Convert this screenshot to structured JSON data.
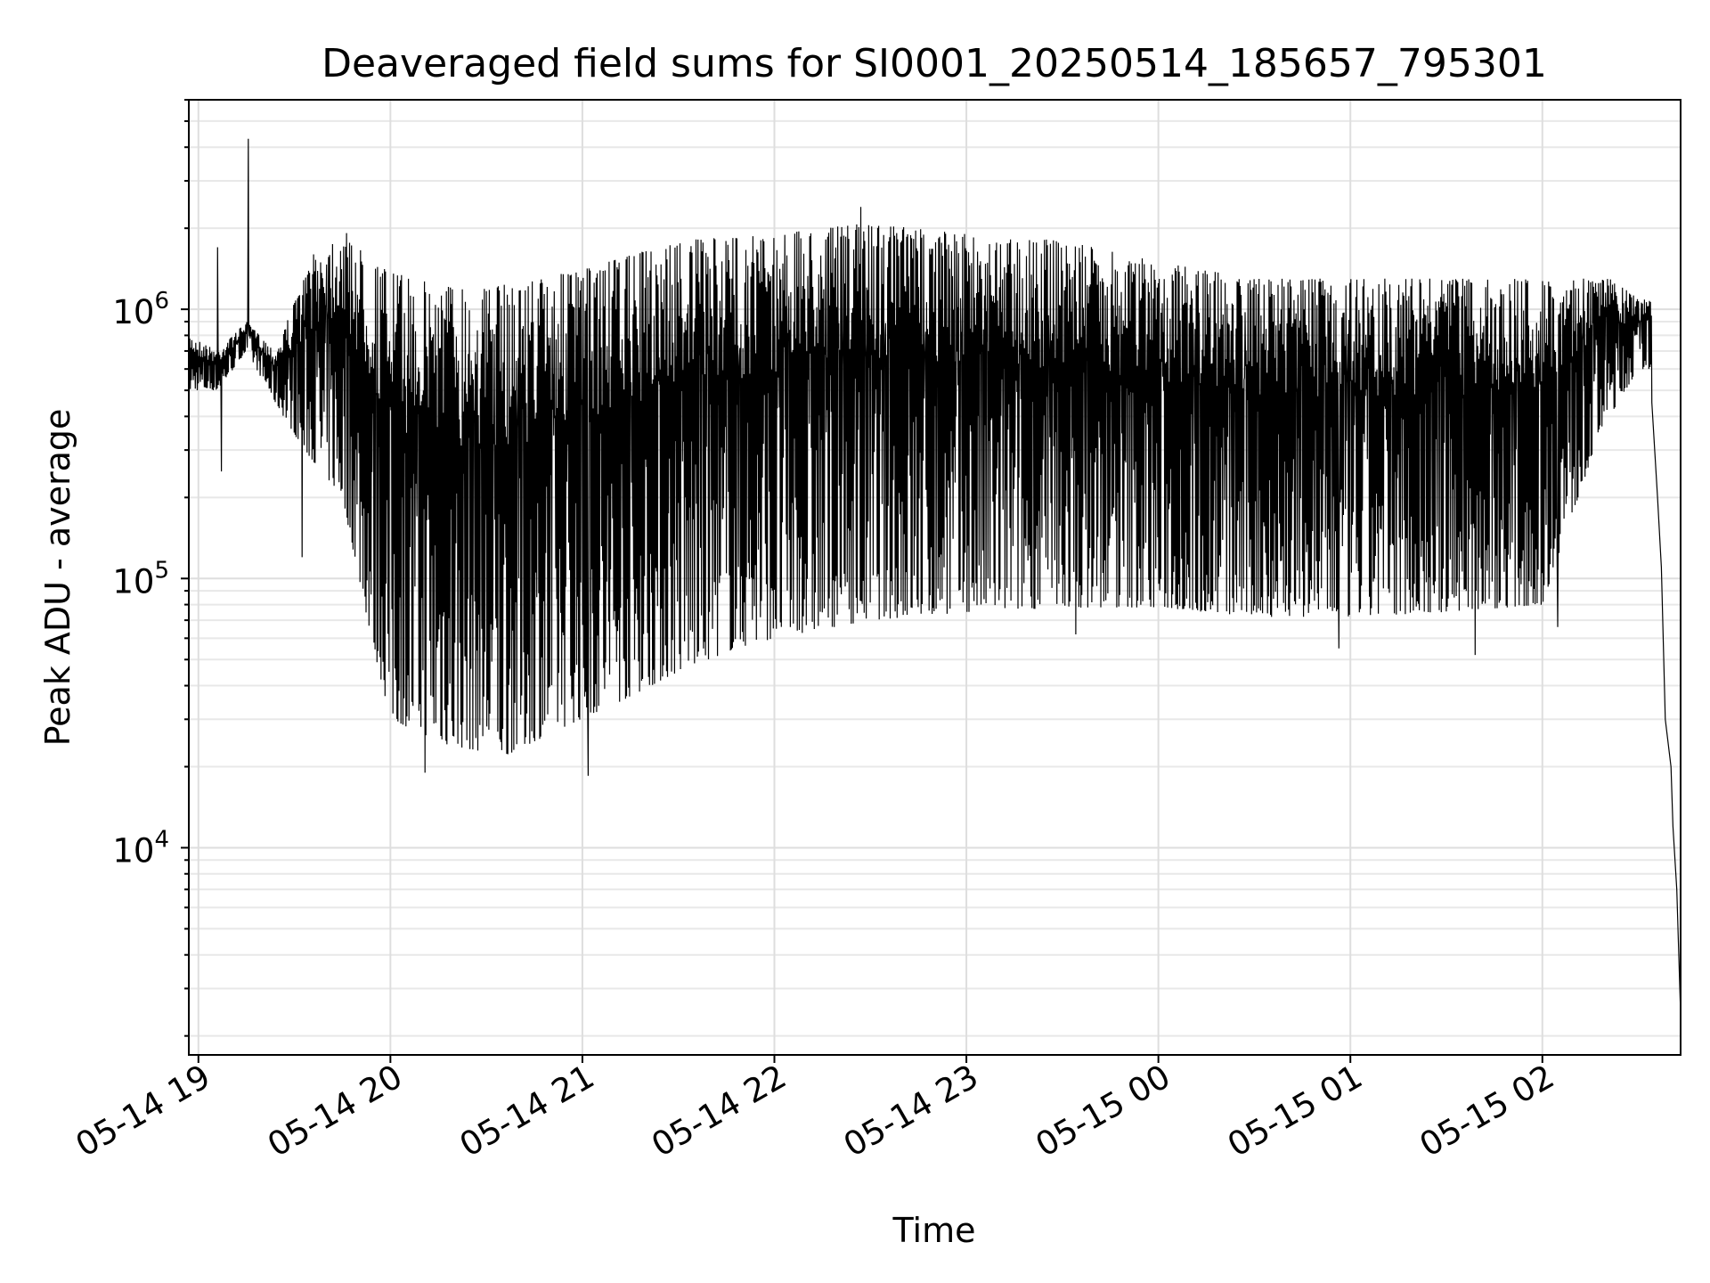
{
  "chart_data": {
    "type": "line",
    "title": "Deaveraged field sums for SI0001_20250514_185657_795301",
    "xlabel": "Time",
    "ylabel": "Peak ADU - average",
    "yscale": "log",
    "ylim": [
      1700,
      6000000
    ],
    "xlim_hours": [
      18.95,
      26.72
    ],
    "grid": true,
    "line_color": "#000000",
    "x_ticks": [
      {
        "label": "05-14 19",
        "hour": 19
      },
      {
        "label": "05-14 20",
        "hour": 20
      },
      {
        "label": "05-14 21",
        "hour": 21
      },
      {
        "label": "05-14 22",
        "hour": 22
      },
      {
        "label": "05-14 23",
        "hour": 23
      },
      {
        "label": "05-15 00",
        "hour": 24
      },
      {
        "label": "05-15 01",
        "hour": 25
      },
      {
        "label": "05-15 02",
        "hour": 26
      }
    ],
    "y_ticks": [
      {
        "base": "10",
        "exp": "4",
        "value": 10000
      },
      {
        "base": "10",
        "exp": "5",
        "value": 100000
      },
      {
        "base": "10",
        "exp": "6",
        "value": 1000000
      }
    ],
    "series": [
      {
        "name": "Peak ADU - average",
        "description": "dense oscillating signal; envelope values sampled along time",
        "upper_envelope": [
          {
            "hour": 18.95,
            "value": 800000
          },
          {
            "hour": 19.1,
            "value": 700000
          },
          {
            "hour": 19.25,
            "value": 900000
          },
          {
            "hour": 19.4,
            "value": 700000
          },
          {
            "hour": 19.6,
            "value": 1600000
          },
          {
            "hour": 19.75,
            "value": 2000000
          },
          {
            "hour": 19.9,
            "value": 1500000
          },
          {
            "hour": 20.1,
            "value": 1300000
          },
          {
            "hour": 20.5,
            "value": 1200000
          },
          {
            "hour": 21.0,
            "value": 1400000
          },
          {
            "hour": 21.5,
            "value": 1800000
          },
          {
            "hour": 22.0,
            "value": 1900000
          },
          {
            "hour": 22.5,
            "value": 2100000
          },
          {
            "hour": 23.0,
            "value": 1900000
          },
          {
            "hour": 23.5,
            "value": 1800000
          },
          {
            "hour": 24.0,
            "value": 1500000
          },
          {
            "hour": 24.5,
            "value": 1300000
          },
          {
            "hour": 25.0,
            "value": 1300000
          },
          {
            "hour": 25.5,
            "value": 1300000
          },
          {
            "hour": 26.0,
            "value": 1300000
          },
          {
            "hour": 26.35,
            "value": 1300000
          },
          {
            "hour": 26.5,
            "value": 1100000
          }
        ],
        "lower_envelope": [
          {
            "hour": 18.95,
            "value": 500000
          },
          {
            "hour": 19.1,
            "value": 500000
          },
          {
            "hour": 19.25,
            "value": 700000
          },
          {
            "hour": 19.4,
            "value": 450000
          },
          {
            "hour": 19.55,
            "value": 300000
          },
          {
            "hour": 19.75,
            "value": 200000
          },
          {
            "hour": 19.9,
            "value": 60000
          },
          {
            "hour": 20.0,
            "value": 30000
          },
          {
            "hour": 20.3,
            "value": 24000
          },
          {
            "hour": 20.6,
            "value": 22000
          },
          {
            "hour": 20.9,
            "value": 28000
          },
          {
            "hour": 21.2,
            "value": 35000
          },
          {
            "hour": 21.5,
            "value": 45000
          },
          {
            "hour": 21.8,
            "value": 55000
          },
          {
            "hour": 22.0,
            "value": 60000
          },
          {
            "hour": 22.5,
            "value": 70000
          },
          {
            "hour": 23.0,
            "value": 75000
          },
          {
            "hour": 23.5,
            "value": 78000
          },
          {
            "hour": 24.0,
            "value": 78000
          },
          {
            "hour": 24.5,
            "value": 72000
          },
          {
            "hour": 25.0,
            "value": 72000
          },
          {
            "hour": 25.5,
            "value": 75000
          },
          {
            "hour": 26.0,
            "value": 80000
          },
          {
            "hour": 26.3,
            "value": 350000
          },
          {
            "hour": 26.5,
            "value": 600000
          }
        ],
        "spikes": [
          {
            "hour": 19.1,
            "value": 1700000
          },
          {
            "hour": 19.12,
            "value": 250000
          },
          {
            "hour": 19.26,
            "value": 4300000
          },
          {
            "hour": 19.54,
            "value": 120000
          },
          {
            "hour": 20.18,
            "value": 19000
          },
          {
            "hour": 21.03,
            "value": 18500
          },
          {
            "hour": 22.45,
            "value": 2400000
          },
          {
            "hour": 23.57,
            "value": 62000
          },
          {
            "hour": 24.94,
            "value": 55000
          },
          {
            "hour": 25.65,
            "value": 52000
          },
          {
            "hour": 26.08,
            "value": 66000
          }
        ],
        "tail": [
          {
            "hour": 26.57,
            "value": 450000
          },
          {
            "hour": 26.6,
            "value": 200000
          },
          {
            "hour": 26.62,
            "value": 110000
          },
          {
            "hour": 26.64,
            "value": 30000
          },
          {
            "hour": 26.67,
            "value": 20000
          },
          {
            "hour": 26.68,
            "value": 12000
          },
          {
            "hour": 26.7,
            "value": 7000
          },
          {
            "hour": 26.72,
            "value": 2400
          }
        ]
      }
    ]
  }
}
